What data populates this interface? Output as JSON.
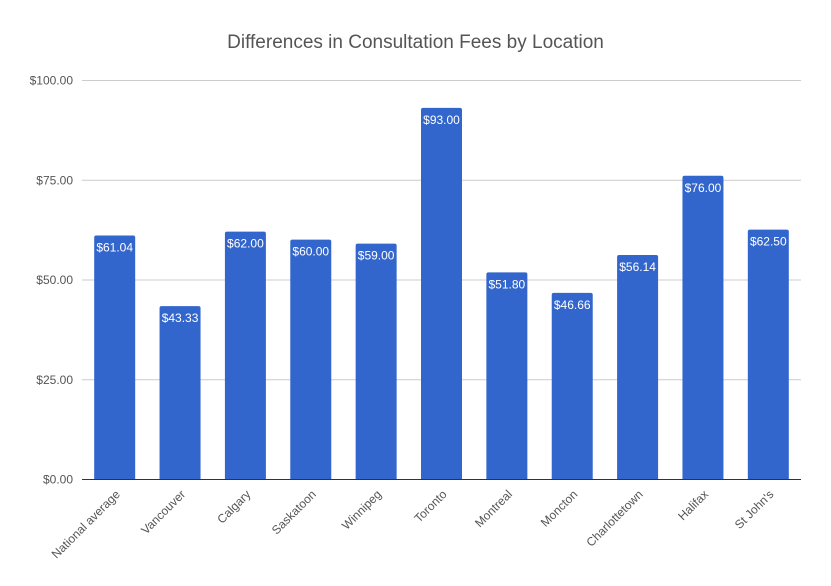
{
  "chart_data": {
    "type": "bar",
    "title": "Differences in Consultation Fees by Location",
    "xlabel": "",
    "ylabel": "",
    "categories": [
      "National average",
      "Vancouver",
      "Calgary",
      "Saskatoon",
      "Winnipeg",
      "Toronto",
      "Montreal",
      "Moncton",
      "Charlottetown",
      "Halifax",
      "St John's"
    ],
    "values": [
      61.04,
      43.33,
      62.0,
      60.0,
      59.0,
      93.0,
      51.8,
      46.66,
      56.14,
      76.0,
      62.5
    ],
    "data_labels": [
      "$61.04",
      "$43.33",
      "$62.00",
      "$60.00",
      "$59.00",
      "$93.00",
      "$51.80",
      "$46.66",
      "$56.14",
      "$76.00",
      "$62.50"
    ],
    "ylim": [
      0,
      100
    ],
    "yticks": [
      0,
      25,
      50,
      75,
      100
    ],
    "ytick_labels": [
      "$0.00",
      "$25.00",
      "$50.00",
      "$75.00",
      "$100.00"
    ],
    "grid": true,
    "legend": "none",
    "bar_color": "#3366cc"
  }
}
